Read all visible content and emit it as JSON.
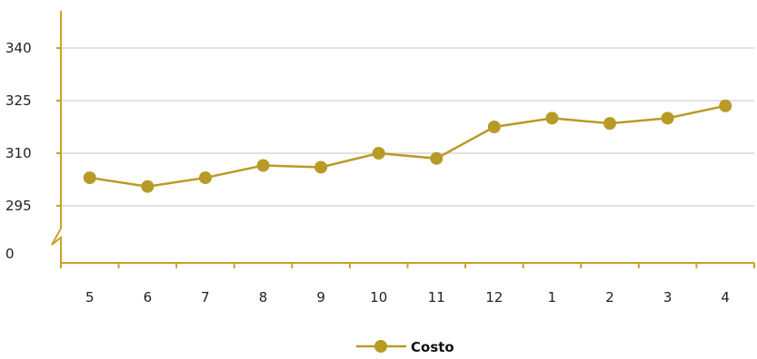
{
  "chart_data": {
    "type": "line",
    "categories": [
      "5",
      "6",
      "7",
      "8",
      "9",
      "10",
      "11",
      "12",
      "1",
      "2",
      "3",
      "4"
    ],
    "series": [
      {
        "name": "Costo",
        "values": [
          303,
          300.5,
          303,
          306.5,
          306,
          310,
          308.5,
          317.5,
          320,
          318.5,
          320,
          323.5
        ]
      }
    ],
    "y_ticks": [
      "340",
      "325",
      "310",
      "295",
      "0"
    ],
    "ylim": [
      290,
      345
    ],
    "axis_break": true,
    "grid": "horizontal",
    "legend_position": "bottom-center",
    "colors": {
      "series": "#b89a26",
      "axis": "#c9a227",
      "grid": "#d9d9d9",
      "text": "#222222"
    }
  }
}
